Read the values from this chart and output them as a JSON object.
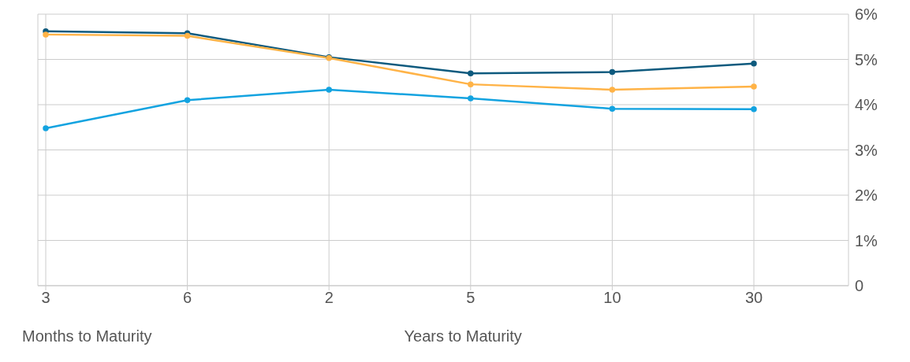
{
  "chart_data": {
    "type": "line",
    "categories": [
      "3",
      "6",
      "2",
      "5",
      "10",
      "30"
    ],
    "series": [
      {
        "color": "#0e5a7e",
        "values": [
          5.62,
          5.58,
          5.05,
          4.69,
          4.72,
          4.91
        ]
      },
      {
        "color": "#ffb347",
        "values": [
          5.55,
          5.52,
          5.03,
          4.45,
          4.33,
          4.4
        ]
      },
      {
        "color": "#13a3e0",
        "values": [
          3.48,
          4.1,
          4.33,
          4.14,
          3.91,
          3.9
        ]
      }
    ],
    "ylim": [
      0,
      6
    ],
    "yticks": [
      0,
      {
        "value": 1,
        "label": "1%"
      },
      {
        "value": 2,
        "label": "2%"
      },
      {
        "value": 3,
        "label": "3%"
      },
      {
        "value": 4,
        "label": "4%"
      },
      {
        "value": 5,
        "label": "5%"
      },
      {
        "value": 6,
        "label": "6%"
      }
    ],
    "grid": true,
    "legend": false,
    "marker": "circle",
    "line_style": "solid",
    "annotations": [
      "Months to Maturity",
      "Years to Maturity"
    ]
  }
}
